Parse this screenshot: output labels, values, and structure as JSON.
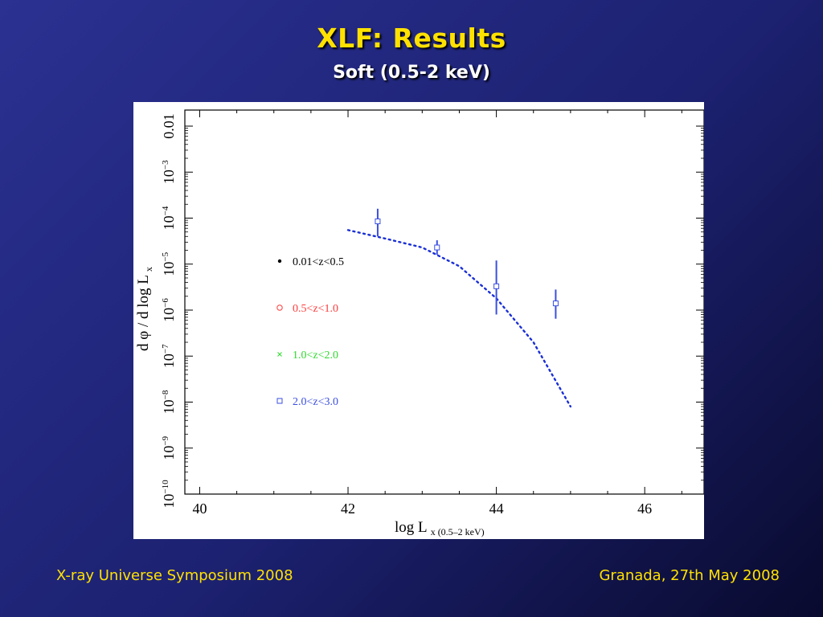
{
  "slide": {
    "title": "XLF: Results",
    "subtitle": "Soft (0.5-2 keV)"
  },
  "footer": {
    "left": "X-ray Universe Symposium 2008",
    "right": "Granada, 27th May 2008"
  },
  "colors": {
    "title": "#ffe100",
    "footer": "#ffe100",
    "series_1": "#000000",
    "series_2": "#ff3b3b",
    "series_3": "#2fd92f",
    "series_4": "#3a4fe0",
    "model_curve": "#1a2fd6"
  },
  "chart_data": {
    "type": "scatter",
    "xlabel": "log L",
    "xlabel_sub": "x (0.5–2 keV)",
    "ylabel": "d φ / d log L",
    "ylabel_sub": "x",
    "xlim": [
      39.8,
      46.8
    ],
    "ylog": true,
    "ylim_exp": [
      -10,
      -2
    ],
    "x_ticks": [
      "40",
      "42",
      "44",
      "46"
    ],
    "y_ticks": [
      {
        "base": "0.01",
        "exp": ""
      },
      {
        "base": "10",
        "exp": "−3"
      },
      {
        "base": "10",
        "exp": "−4"
      },
      {
        "base": "10",
        "exp": "−5"
      },
      {
        "base": "10",
        "exp": "−6"
      },
      {
        "base": "10",
        "exp": "−7"
      },
      {
        "base": "10",
        "exp": "−8"
      },
      {
        "base": "10",
        "exp": "−9"
      },
      {
        "base": "10",
        "exp": "−10"
      }
    ],
    "legend_placement": "left",
    "legend": [
      {
        "label": "0.01<z<0.5",
        "marker": "dot",
        "color": "#000000"
      },
      {
        "label": "0.5<z<1.0",
        "marker": "circle",
        "color": "#ff3b3b"
      },
      {
        "label": "1.0<z<2.0",
        "marker": "cross",
        "color": "#2fd92f"
      },
      {
        "label": "2.0<z<3.0",
        "marker": "square",
        "color": "#3a4fe0"
      }
    ],
    "series": [
      {
        "name": "2.0<z<3.0",
        "marker": "square",
        "color": "#3a4fe0",
        "points": [
          {
            "x": 42.4,
            "y": 8.5e-05,
            "ylo": 4e-05,
            "yhi": 0.00016
          },
          {
            "x": 43.2,
            "y": 2.3e-05,
            "ylo": 1.6e-05,
            "yhi": 3.3e-05
          },
          {
            "x": 44.0,
            "y": 3.3e-06,
            "ylo": 8e-07,
            "yhi": 1.2e-05
          },
          {
            "x": 44.8,
            "y": 1.4e-06,
            "ylo": 6.5e-07,
            "yhi": 2.8e-06
          }
        ]
      }
    ],
    "model": {
      "style": "dotted",
      "color": "#1a2fd6",
      "x": [
        42.0,
        42.5,
        43.0,
        43.5,
        44.0,
        44.5,
        45.0
      ],
      "y": [
        5.5e-05,
        3.6e-05,
        2.3e-05,
        9e-06,
        1.8e-06,
        2e-07,
        8e-09
      ]
    }
  }
}
